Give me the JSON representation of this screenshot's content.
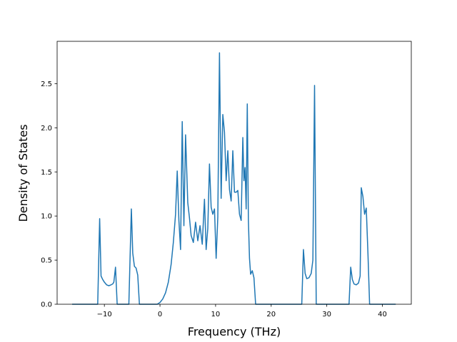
{
  "chart_data": {
    "type": "line",
    "xlabel": "Frequency (THz)",
    "ylabel": "Density of States",
    "xlim": [
      -18.5,
      45.2
    ],
    "ylim": [
      0,
      2.98
    ],
    "grid": false,
    "xticks": [
      -10,
      0,
      10,
      20,
      30,
      40
    ],
    "xtick_labels": [
      "−10",
      "0",
      "10",
      "20",
      "30",
      "40"
    ],
    "yticks": [
      0.0,
      0.5,
      1.0,
      1.5,
      2.0,
      2.5
    ],
    "ytick_labels": [
      "0.0",
      "0.5",
      "1.0",
      "1.5",
      "2.0",
      "2.5"
    ],
    "series": [
      {
        "color": "#1f77b4",
        "x": [
          -15.8,
          -11.2,
          -10.85,
          -10.6,
          -10.3,
          -10.0,
          -9.6,
          -9.2,
          -8.8,
          -8.5,
          -8.3,
          -8.0,
          -7.7,
          -5.6,
          -5.15,
          -4.9,
          -4.6,
          -4.3,
          -4.0,
          -3.7,
          -3.3,
          -3.0,
          -2.7,
          -0.5,
          0.0,
          0.5,
          1.0,
          1.5,
          2.0,
          2.4,
          2.8,
          3.1,
          3.4,
          3.7,
          4.0,
          4.3,
          4.6,
          5.0,
          5.3,
          5.6,
          6.0,
          6.4,
          6.8,
          7.2,
          7.6,
          8.0,
          8.3,
          8.6,
          8.9,
          9.2,
          9.5,
          9.8,
          10.1,
          10.4,
          10.7,
          11.0,
          11.3,
          11.6,
          11.9,
          12.2,
          12.5,
          12.8,
          13.1,
          13.4,
          13.7,
          14.0,
          14.3,
          14.6,
          14.9,
          15.1,
          15.3,
          15.5,
          15.7,
          15.9,
          16.1,
          16.3,
          16.6,
          16.9,
          17.2,
          17.5,
          17.8,
          18.1,
          25.5,
          25.8,
          26.1,
          26.4,
          26.8,
          27.2,
          27.5,
          27.8,
          28.1,
          34.0,
          34.3,
          34.6,
          34.9,
          35.3,
          35.7,
          36.0,
          36.2,
          36.5,
          36.8,
          37.1,
          37.4,
          37.7,
          38.0,
          42.4
        ],
        "y": [
          0.0,
          0.0,
          0.97,
          0.32,
          0.28,
          0.25,
          0.22,
          0.21,
          0.22,
          0.23,
          0.25,
          0.42,
          0.0,
          0.0,
          1.08,
          0.58,
          0.43,
          0.41,
          0.33,
          0.0,
          0.0,
          0.0,
          0.0,
          0.0,
          0.02,
          0.06,
          0.13,
          0.25,
          0.45,
          0.7,
          1.02,
          1.51,
          0.95,
          0.62,
          2.07,
          0.89,
          1.92,
          1.15,
          0.98,
          0.78,
          0.7,
          0.93,
          0.72,
          0.89,
          0.68,
          1.19,
          0.62,
          0.86,
          1.59,
          1.1,
          1.02,
          1.08,
          0.52,
          0.99,
          2.85,
          1.2,
          2.15,
          1.95,
          1.4,
          1.74,
          1.3,
          1.17,
          1.74,
          1.27,
          1.27,
          1.29,
          1.02,
          0.95,
          1.89,
          1.4,
          1.55,
          1.08,
          2.27,
          0.95,
          0.52,
          0.34,
          0.38,
          0.3,
          0.0,
          0.0,
          0.0,
          0.0,
          0.0,
          0.62,
          0.35,
          0.29,
          0.3,
          0.35,
          0.5,
          2.48,
          0.0,
          0.0,
          0.42,
          0.28,
          0.23,
          0.22,
          0.24,
          0.32,
          1.32,
          1.22,
          1.02,
          1.09,
          0.58,
          0.0,
          0.0,
          0.0
        ]
      }
    ]
  }
}
